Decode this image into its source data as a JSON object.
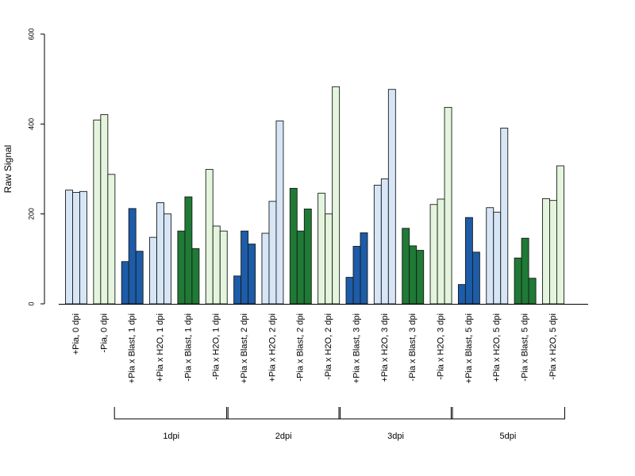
{
  "chart_data": {
    "type": "bar",
    "ylabel": "Raw Signal",
    "ylim": [
      0,
      600
    ],
    "yticks": [
      0,
      200,
      400,
      600
    ],
    "grid": false,
    "categories": [
      "+Pia, 0 dpi",
      "-Pia, 0 dpi",
      "+Pia x Blast, 1 dpi",
      "+Pia x H2O, 1 dpi",
      "-Pia x Blast, 1 dpi",
      "-Pia x H2O, 1 dpi",
      "+Pia x Blast, 2 dpi",
      "+Pia x H2O, 2 dpi",
      "-Pia x Blast, 2 dpi",
      "-Pia x H2O, 2 dpi",
      "+Pia x Blast, 3 dpi",
      "+Pia x H2O, 3 dpi",
      "-Pia x Blast, 3 dpi",
      "-Pia x H2O, 3 dpi",
      "+Pia x Blast, 5 dpi",
      "+Pia x H2O, 5 dpi",
      "-Pia x Blast, 5 dpi",
      "-Pia x H2O, 5 dpi"
    ],
    "values": [
      [
        253,
        248,
        250
      ],
      [
        409,
        421,
        288
      ],
      [
        94,
        212,
        117
      ],
      [
        148,
        225,
        200
      ],
      [
        162,
        238,
        123
      ],
      [
        299,
        173,
        162
      ],
      [
        62,
        162,
        133
      ],
      [
        157,
        228,
        407
      ],
      [
        257,
        162,
        211
      ],
      [
        246,
        200,
        483
      ],
      [
        59,
        128,
        158
      ],
      [
        264,
        278,
        477
      ],
      [
        168,
        129,
        119
      ],
      [
        221,
        233,
        437
      ],
      [
        43,
        192,
        115
      ],
      [
        214,
        204,
        391
      ],
      [
        102,
        146,
        57
      ],
      [
        234,
        230,
        307
      ]
    ],
    "bar_colors": [
      "#d6e6f7",
      "#e4f5dd",
      "#1c5ca8",
      "#d6e6f7",
      "#1e7a35",
      "#e4f5dd",
      "#1c5ca8",
      "#d6e6f7",
      "#1e7a35",
      "#e4f5dd",
      "#1c5ca8",
      "#d6e6f7",
      "#1e7a35",
      "#e4f5dd",
      "#1c5ca8",
      "#d6e6f7",
      "#1e7a35",
      "#e4f5dd"
    ],
    "groups": [
      {
        "label": "1dpi",
        "first": 2,
        "last": 5
      },
      {
        "label": "2dpi",
        "first": 6,
        "last": 9
      },
      {
        "label": "3dpi",
        "first": 10,
        "last": 13
      },
      {
        "label": "5dpi",
        "first": 14,
        "last": 17
      }
    ]
  }
}
